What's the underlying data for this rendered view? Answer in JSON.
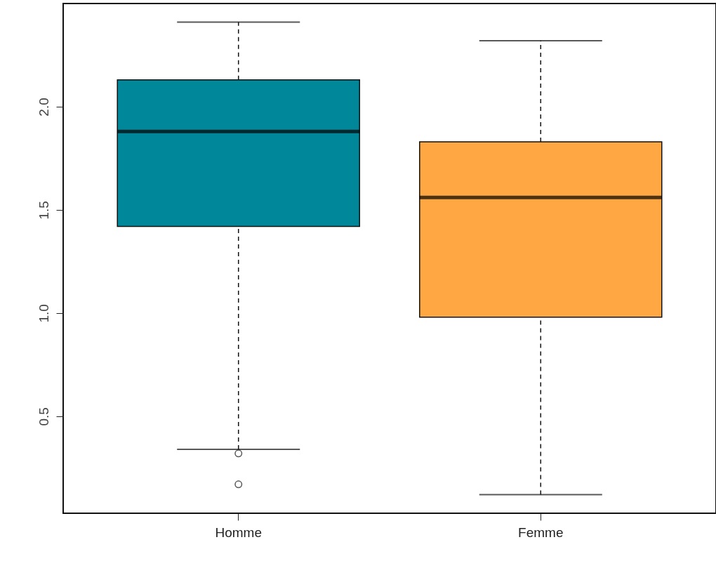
{
  "chart_data": {
    "type": "box",
    "categories": [
      "Homme",
      "Femme"
    ],
    "colors": [
      "#00889a",
      "#ffa742"
    ],
    "boxes": [
      {
        "low": 0.34,
        "q1": 1.42,
        "median": 1.88,
        "q3": 2.13,
        "high": 2.41,
        "outliers": [
          0.32,
          0.17
        ]
      },
      {
        "low": 0.12,
        "q1": 0.98,
        "median": 1.56,
        "q3": 1.83,
        "high": 2.32
      }
    ],
    "ylim": [
      0.03,
      2.5
    ],
    "yticks": [
      {
        "value": 0.5,
        "label": "0.5"
      },
      {
        "value": 1,
        "label": "1.0"
      },
      {
        "value": 1.5,
        "label": "1.5"
      },
      {
        "value": 2,
        "label": "2.0"
      }
    ],
    "grid": false
  }
}
